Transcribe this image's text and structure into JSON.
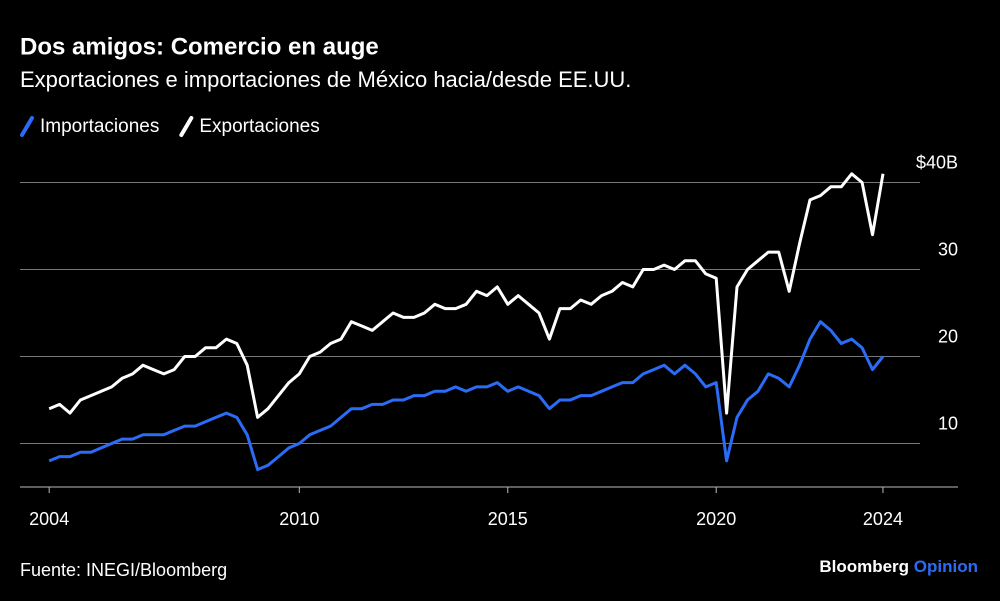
{
  "chart_data": {
    "type": "line",
    "title": "Dos amigos: Comercio en auge",
    "subtitle": "Exportaciones e importaciones de México hacia/desde EE.UU.",
    "source": "Fuente: INEGI/Bloomberg",
    "brand": "Bloomberg",
    "brand_suffix": "Opinion",
    "x": [
      2004,
      2004.25,
      2004.5,
      2004.75,
      2005,
      2005.25,
      2005.5,
      2005.75,
      2006,
      2006.25,
      2006.5,
      2006.75,
      2007,
      2007.25,
      2007.5,
      2007.75,
      2008,
      2008.25,
      2008.5,
      2008.75,
      2009,
      2009.25,
      2009.5,
      2009.75,
      2010,
      2010.25,
      2010.5,
      2010.75,
      2011,
      2011.25,
      2011.5,
      2011.75,
      2012,
      2012.25,
      2012.5,
      2012.75,
      2013,
      2013.25,
      2013.5,
      2013.75,
      2014,
      2014.25,
      2014.5,
      2014.75,
      2015,
      2015.25,
      2015.5,
      2015.75,
      2016,
      2016.25,
      2016.5,
      2016.75,
      2017,
      2017.25,
      2017.5,
      2017.75,
      2018,
      2018.25,
      2018.5,
      2018.75,
      2019,
      2019.25,
      2019.5,
      2019.75,
      2020,
      2020.25,
      2020.5,
      2020.75,
      2021,
      2021.25,
      2021.5,
      2021.75,
      2022,
      2022.25,
      2022.5,
      2022.75,
      2023,
      2023.25,
      2023.5,
      2023.75,
      2024
    ],
    "series": [
      {
        "name": "Importaciones",
        "color": "#2b6cf6",
        "values": [
          8,
          8.5,
          8.5,
          9,
          9,
          9.5,
          10,
          10.5,
          10.5,
          11,
          11,
          11,
          11.5,
          12,
          12,
          12.5,
          13,
          13.5,
          13,
          11,
          7,
          7.5,
          8.5,
          9.5,
          10,
          11,
          11.5,
          12,
          13,
          14,
          14,
          14.5,
          14.5,
          15,
          15,
          15.5,
          15.5,
          16,
          16,
          16.5,
          16,
          16.5,
          16.5,
          17,
          16,
          16.5,
          16,
          15.5,
          14,
          15,
          15,
          15.5,
          15.5,
          16,
          16.5,
          17,
          17,
          18,
          18.5,
          19,
          18,
          19,
          18,
          16.5,
          17,
          8,
          13,
          15,
          16,
          18,
          17.5,
          16.5,
          19,
          22,
          24,
          23,
          21.5,
          22,
          21,
          18.5,
          20
        ]
      },
      {
        "name": "Exportaciones",
        "color": "#ffffff",
        "values": [
          14,
          14.5,
          13.5,
          15,
          15.5,
          16,
          16.5,
          17.5,
          18,
          19,
          18.5,
          18,
          18.5,
          20,
          20,
          21,
          21,
          22,
          21.5,
          19,
          13,
          14,
          15.5,
          17,
          18,
          20,
          20.5,
          21.5,
          22,
          24,
          23.5,
          23,
          24,
          25,
          24.5,
          24.5,
          25,
          26,
          25.5,
          25.5,
          26,
          27.5,
          27,
          28,
          26,
          27,
          26,
          25,
          22,
          25.5,
          25.5,
          26.5,
          26,
          27,
          27.5,
          28.5,
          28,
          30,
          30,
          30.5,
          30,
          31,
          31,
          29.5,
          29,
          13.5,
          28,
          30,
          31,
          32,
          32,
          27.5,
          33,
          38,
          38.5,
          39.5,
          39.5,
          41,
          40,
          34,
          41
        ]
      }
    ],
    "xlim": [
      2003.3,
      2025.8
    ],
    "ylim": [
      5,
      45
    ],
    "xticks": [
      2004,
      2010,
      2015,
      2020,
      2024
    ],
    "yticks": [
      10,
      20,
      30,
      {
        "value": 40,
        "label": "$40B"
      }
    ],
    "grid": true
  }
}
